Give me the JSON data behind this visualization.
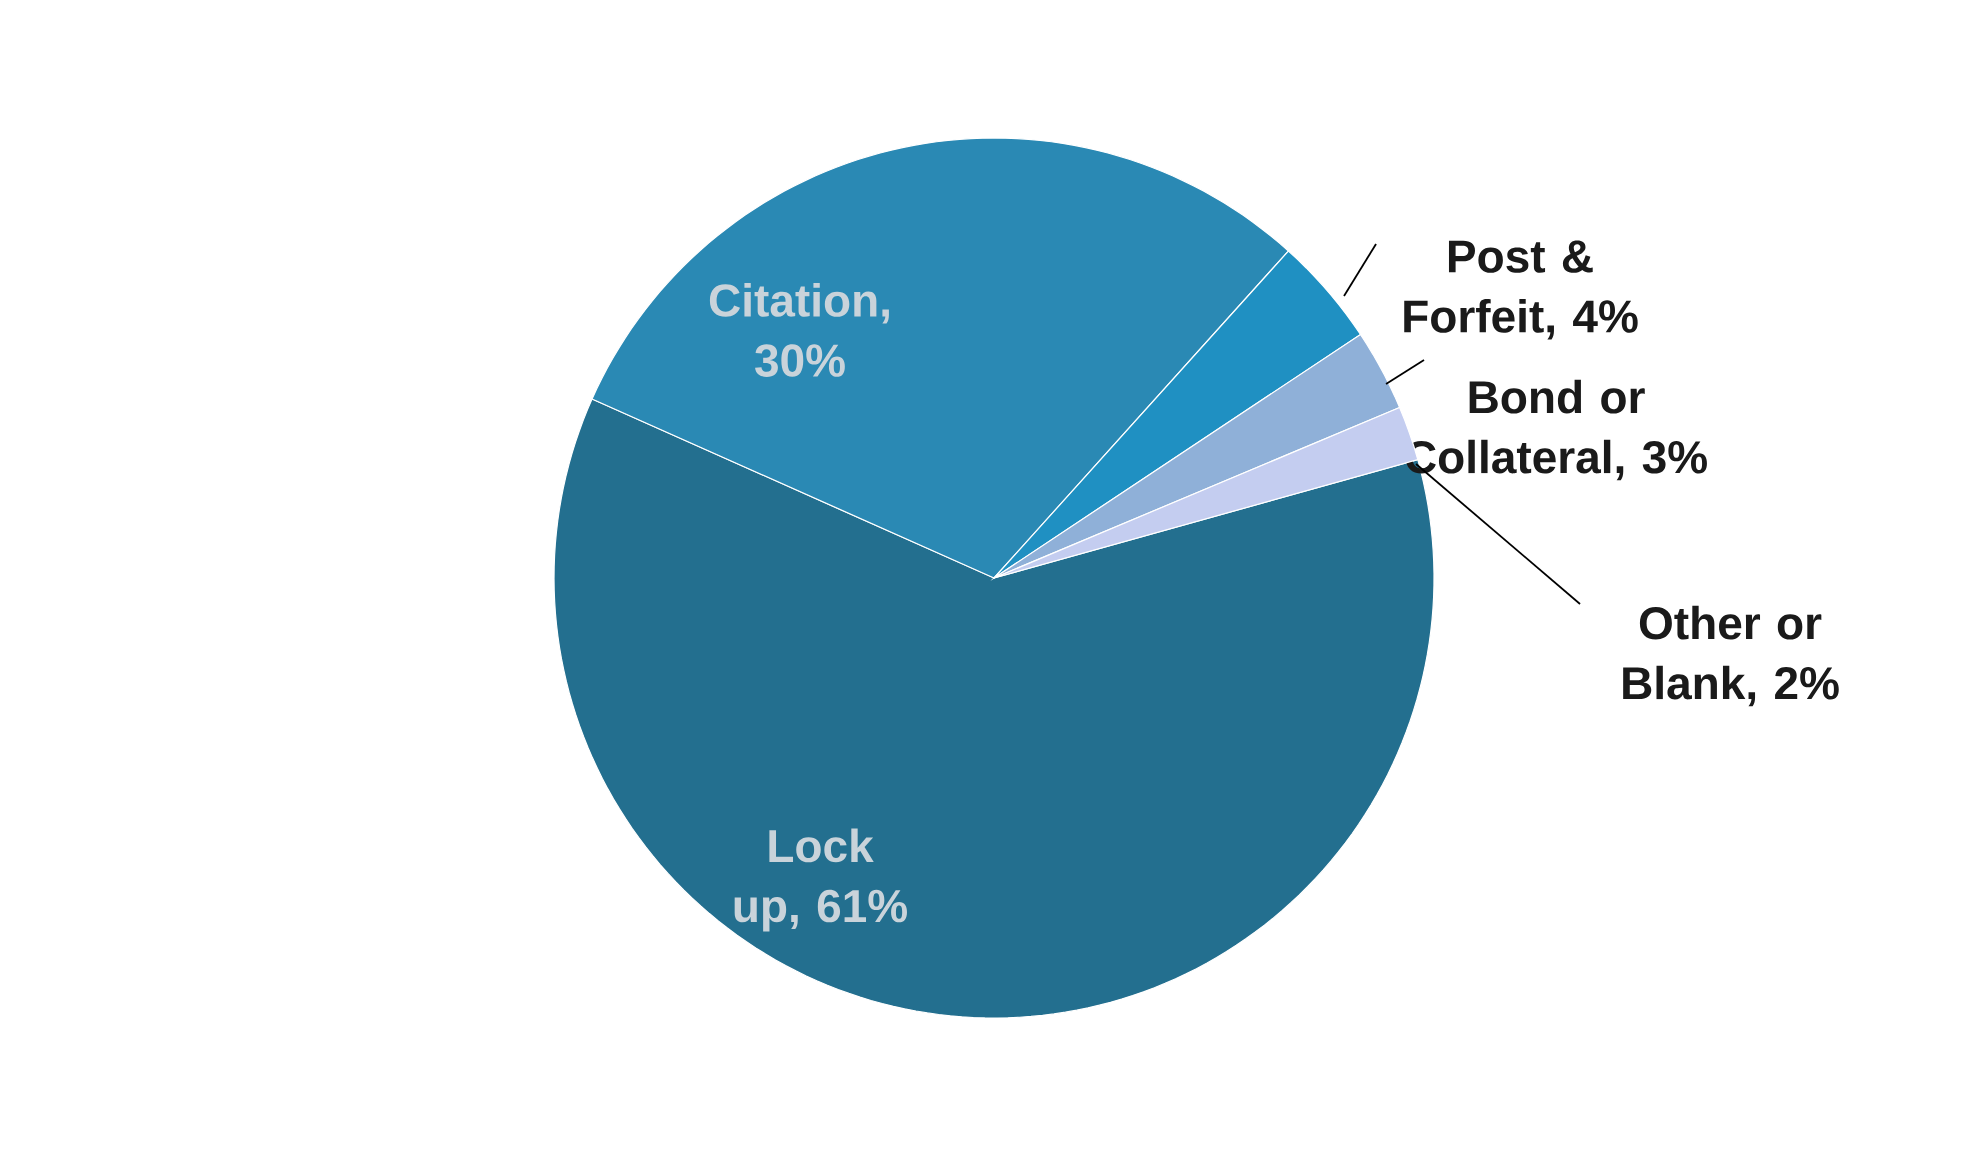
{
  "chart_data": {
    "type": "pie",
    "categories": [
      "Lock up",
      "Citation",
      "Post & Forfeit",
      "Bond or Collateral",
      "Other or Blank"
    ],
    "values": [
      61,
      30,
      4,
      3,
      2
    ],
    "value_labels": [
      ", 61%",
      ", 30%",
      ", 4%",
      ", 3%",
      ", 2%"
    ],
    "colors": [
      "#236f8f",
      "#2a89b4",
      "#1f90c2",
      "#8fb0d8",
      "#c4cdf0"
    ]
  }
}
